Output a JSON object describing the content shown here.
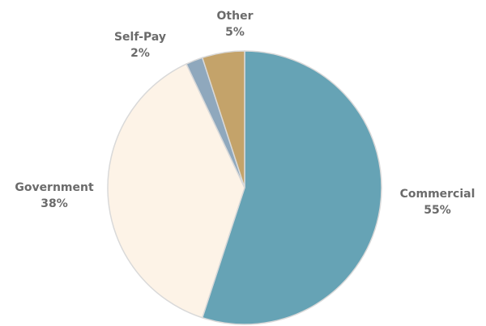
{
  "chart_data": {
    "type": "pie",
    "categories": [
      "Commercial",
      "Government",
      "Self-Pay",
      "Other"
    ],
    "values": [
      55,
      38,
      2,
      5
    ],
    "value_labels": [
      "55%",
      "38%",
      "2%",
      "5%"
    ],
    "colors": [
      "#66a3b5",
      "#fdf3e7",
      "#8fa8bd",
      "#c4a36a"
    ]
  }
}
